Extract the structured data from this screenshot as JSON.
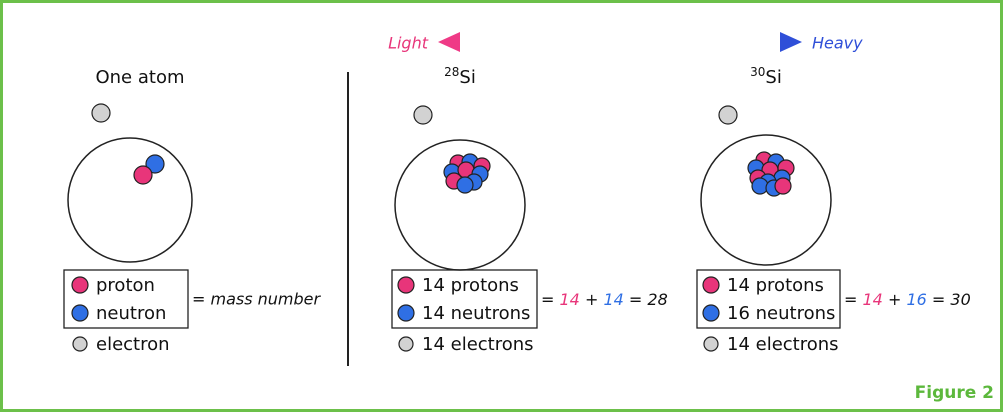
{
  "header": {
    "light": "Light",
    "heavy": "Heavy"
  },
  "atoms": [
    {
      "title": "One atom",
      "legend": [
        "proton",
        "neutron",
        "electron"
      ],
      "equation": "= mass number"
    },
    {
      "isotope": {
        "mass": "28",
        "symbol": "Si"
      },
      "legend": [
        "14 protons",
        "14 neutrons",
        "14 electrons"
      ],
      "equation": [
        "=",
        "14",
        "+",
        "14",
        "= 28"
      ]
    },
    {
      "isotope": {
        "mass": "30",
        "symbol": "Si"
      },
      "legend": [
        "14 protons",
        "16 neutrons",
        "14 electrons"
      ],
      "equation": [
        "=",
        "14",
        "+",
        "16",
        "= 30"
      ]
    }
  ],
  "footer": "Figure 2"
}
